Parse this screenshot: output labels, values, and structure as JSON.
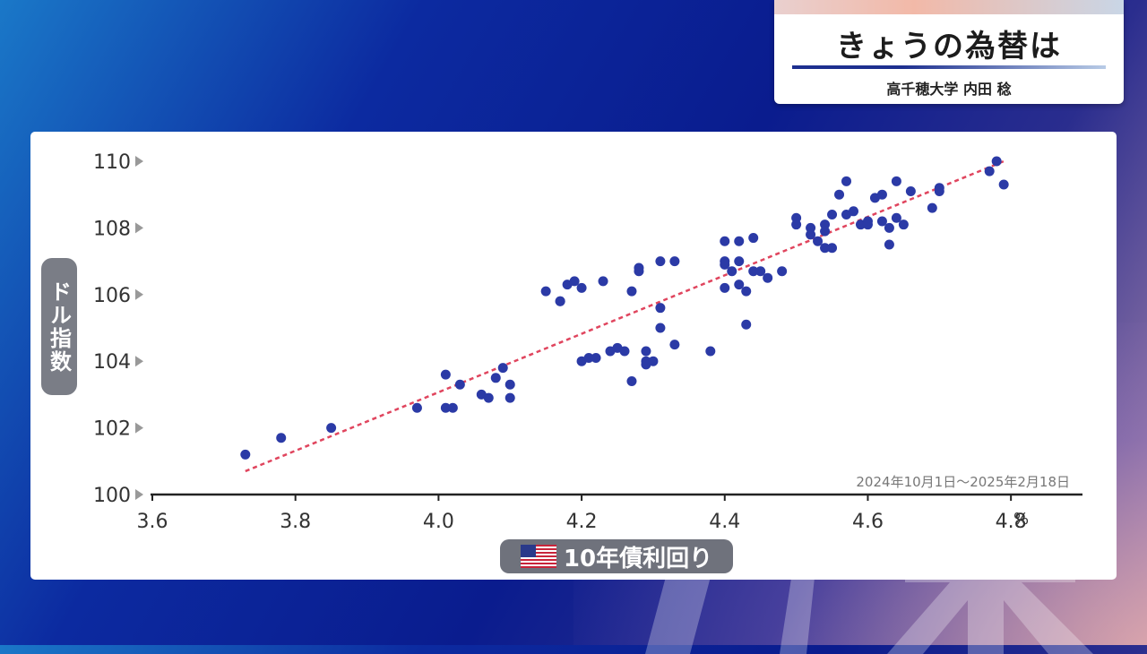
{
  "header": {
    "title": "きょうの為替は",
    "presenter": "高千穂大学 内田 稔"
  },
  "colors": {
    "point": "#2b3aa6",
    "trendline": "#e0455e",
    "axis": "#222222"
  },
  "chart_data": {
    "type": "scatter",
    "title": "",
    "xlabel": "10年債利回り",
    "ylabel": "ドル指数",
    "x_unit": "%",
    "period": "2024年10月1日〜2025年2月18日",
    "xlim": [
      3.6,
      4.9
    ],
    "ylim": [
      100,
      110
    ],
    "x_ticks": [
      "3.6",
      "3.8",
      "4.0",
      "4.2",
      "4.4",
      "4.6",
      "4.8"
    ],
    "y_ticks": [
      "100",
      "102",
      "104",
      "106",
      "108",
      "110"
    ],
    "grid": false,
    "trendline": {
      "x": [
        3.73,
        4.79
      ],
      "y": [
        100.7,
        110.0
      ]
    },
    "points": [
      {
        "x": 3.73,
        "y": 101.2
      },
      {
        "x": 3.78,
        "y": 101.7
      },
      {
        "x": 3.85,
        "y": 102.0
      },
      {
        "x": 3.97,
        "y": 102.6
      },
      {
        "x": 4.01,
        "y": 102.6
      },
      {
        "x": 4.02,
        "y": 102.6
      },
      {
        "x": 4.01,
        "y": 103.6
      },
      {
        "x": 4.03,
        "y": 103.3
      },
      {
        "x": 4.06,
        "y": 103.0
      },
      {
        "x": 4.07,
        "y": 102.9
      },
      {
        "x": 4.08,
        "y": 103.5
      },
      {
        "x": 4.09,
        "y": 103.8
      },
      {
        "x": 4.1,
        "y": 103.3
      },
      {
        "x": 4.1,
        "y": 102.9
      },
      {
        "x": 4.15,
        "y": 106.1
      },
      {
        "x": 4.17,
        "y": 105.8
      },
      {
        "x": 4.17,
        "y": 105.8
      },
      {
        "x": 4.18,
        "y": 106.3
      },
      {
        "x": 4.19,
        "y": 106.4
      },
      {
        "x": 4.2,
        "y": 106.2
      },
      {
        "x": 4.2,
        "y": 104.0
      },
      {
        "x": 4.21,
        "y": 104.1
      },
      {
        "x": 4.22,
        "y": 104.1
      },
      {
        "x": 4.23,
        "y": 106.4
      },
      {
        "x": 4.24,
        "y": 104.3
      },
      {
        "x": 4.25,
        "y": 104.4
      },
      {
        "x": 4.26,
        "y": 104.3
      },
      {
        "x": 4.27,
        "y": 106.1
      },
      {
        "x": 4.27,
        "y": 103.4
      },
      {
        "x": 4.28,
        "y": 106.8
      },
      {
        "x": 4.28,
        "y": 106.7
      },
      {
        "x": 4.29,
        "y": 104.3
      },
      {
        "x": 4.29,
        "y": 104.0
      },
      {
        "x": 4.29,
        "y": 103.9
      },
      {
        "x": 4.3,
        "y": 104.0
      },
      {
        "x": 4.31,
        "y": 107.0
      },
      {
        "x": 4.31,
        "y": 105.6
      },
      {
        "x": 4.31,
        "y": 105.0
      },
      {
        "x": 4.33,
        "y": 107.0
      },
      {
        "x": 4.33,
        "y": 104.5
      },
      {
        "x": 4.38,
        "y": 104.3
      },
      {
        "x": 4.4,
        "y": 107.6
      },
      {
        "x": 4.4,
        "y": 107.0
      },
      {
        "x": 4.4,
        "y": 106.9
      },
      {
        "x": 4.4,
        "y": 106.2
      },
      {
        "x": 4.41,
        "y": 106.7
      },
      {
        "x": 4.42,
        "y": 107.6
      },
      {
        "x": 4.42,
        "y": 107.0
      },
      {
        "x": 4.42,
        "y": 106.3
      },
      {
        "x": 4.43,
        "y": 106.1
      },
      {
        "x": 4.43,
        "y": 105.1
      },
      {
        "x": 4.44,
        "y": 107.7
      },
      {
        "x": 4.44,
        "y": 106.7
      },
      {
        "x": 4.45,
        "y": 106.7
      },
      {
        "x": 4.46,
        "y": 106.5
      },
      {
        "x": 4.48,
        "y": 106.7
      },
      {
        "x": 4.5,
        "y": 108.3
      },
      {
        "x": 4.5,
        "y": 108.1
      },
      {
        "x": 4.52,
        "y": 108.0
      },
      {
        "x": 4.52,
        "y": 107.8
      },
      {
        "x": 4.53,
        "y": 107.6
      },
      {
        "x": 4.54,
        "y": 108.1
      },
      {
        "x": 4.54,
        "y": 107.9
      },
      {
        "x": 4.54,
        "y": 107.4
      },
      {
        "x": 4.55,
        "y": 108.4
      },
      {
        "x": 4.55,
        "y": 107.4
      },
      {
        "x": 4.56,
        "y": 109.0
      },
      {
        "x": 4.57,
        "y": 109.4
      },
      {
        "x": 4.57,
        "y": 108.4
      },
      {
        "x": 4.58,
        "y": 108.5
      },
      {
        "x": 4.59,
        "y": 108.1
      },
      {
        "x": 4.6,
        "y": 108.2
      },
      {
        "x": 4.6,
        "y": 108.1
      },
      {
        "x": 4.61,
        "y": 108.9
      },
      {
        "x": 4.62,
        "y": 109.0
      },
      {
        "x": 4.62,
        "y": 108.2
      },
      {
        "x": 4.63,
        "y": 108.0
      },
      {
        "x": 4.63,
        "y": 107.5
      },
      {
        "x": 4.64,
        "y": 109.4
      },
      {
        "x": 4.64,
        "y": 108.3
      },
      {
        "x": 4.65,
        "y": 108.1
      },
      {
        "x": 4.66,
        "y": 109.1
      },
      {
        "x": 4.69,
        "y": 108.6
      },
      {
        "x": 4.7,
        "y": 109.2
      },
      {
        "x": 4.7,
        "y": 109.1
      },
      {
        "x": 4.77,
        "y": 109.7
      },
      {
        "x": 4.78,
        "y": 110.0
      },
      {
        "x": 4.79,
        "y": 109.3
      }
    ]
  }
}
